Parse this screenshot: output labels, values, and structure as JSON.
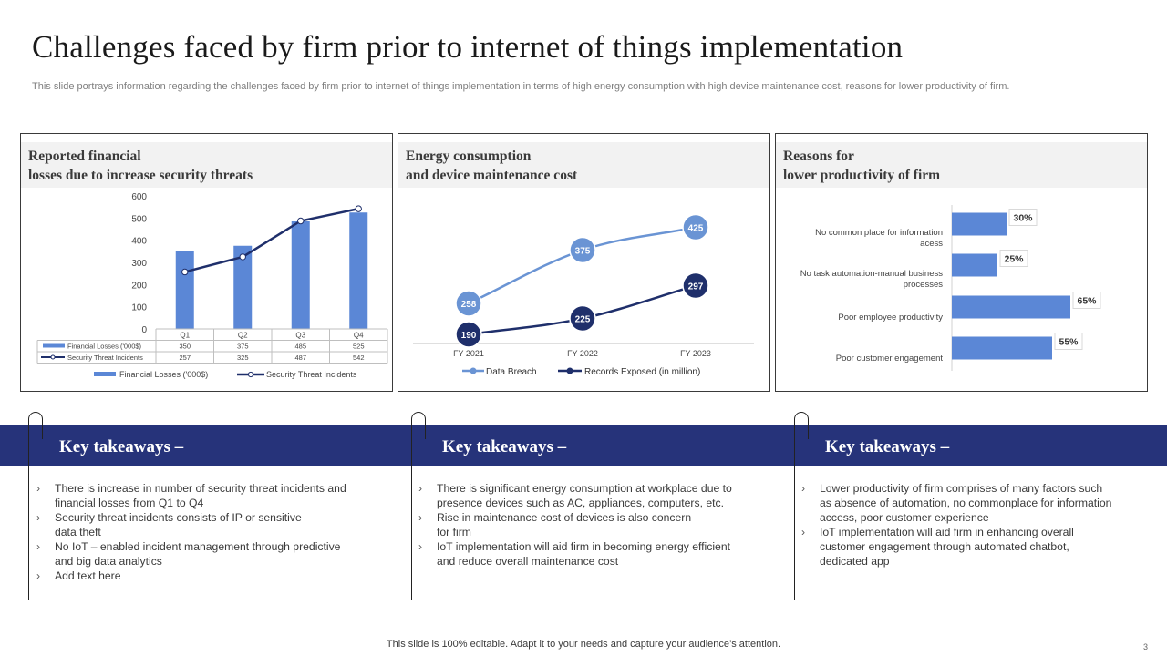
{
  "title": "Challenges faced by firm prior to internet of things implementation",
  "subtitle": "This slide portrays information regarding the challenges faced by  firm prior to internet of things implementation in terms of high energy consumption with high device maintenance cost, reasons for lower productivity of firm.",
  "panels": [
    {
      "title_line1": "Reported financial",
      "title_line2": "losses due to increase security threats"
    },
    {
      "title_line1": "Energy consumption",
      "title_line2": "and device maintenance cost"
    },
    {
      "title_line1": "Reasons for",
      "title_line2": "lower productivity of firm"
    }
  ],
  "chart_data": [
    {
      "type": "bar",
      "categories": [
        "Q1",
        "Q2",
        "Q3",
        "Q4"
      ],
      "series": [
        {
          "name": "Financial Losses  ('000$)",
          "type": "bar",
          "values": [
            350,
            375,
            485,
            525
          ],
          "color": "#5b87d6"
        },
        {
          "name": "Security Threat Incidents",
          "type": "line",
          "values": [
            257,
            325,
            487,
            542
          ],
          "color": "#1f2f6b"
        }
      ],
      "table_labels": [
        "Financial Losses  ('000$)",
        "Security Threat Incidents"
      ],
      "table_values": [
        [
          "350",
          "375",
          "485",
          "525"
        ],
        [
          "257",
          "325",
          "487",
          "542"
        ]
      ],
      "ylim": [
        0,
        600
      ],
      "yticks": [
        "600",
        "500",
        "400",
        "300",
        "200",
        "100",
        "0"
      ],
      "legend": [
        "Financial Losses  ('000$)",
        "Security Threat Incidents"
      ]
    },
    {
      "type": "line",
      "x": [
        "FY 2021",
        "FY 2022",
        "FY 2023"
      ],
      "series": [
        {
          "name": "Data Breach",
          "values": [
            258,
            375,
            425
          ],
          "color": "#6a94d4"
        },
        {
          "name": "Records Exposed (in million)",
          "values": [
            190,
            225,
            297
          ],
          "color": "#1f2f6b"
        }
      ],
      "labels": [
        [
          "258",
          "375",
          "425"
        ],
        [
          "190",
          "225",
          "297"
        ]
      ],
      "legend": [
        "Data Breach",
        "Records Exposed (in million)"
      ]
    },
    {
      "type": "bar",
      "orientation": "horizontal",
      "categories": [
        "No common place for information acess",
        "No task automation-manual business processes",
        "Poor employee productivity",
        "Poor customer engagement"
      ],
      "category_lines": [
        [
          "No common place for information",
          "acess"
        ],
        [
          "No task automation-manual business",
          "processes"
        ],
        [
          "Poor employee productivity"
        ],
        [
          "Poor customer engagement"
        ]
      ],
      "values": [
        30,
        25,
        65,
        55
      ],
      "value_labels": [
        "30%",
        "25%",
        "65%",
        "55%"
      ],
      "color": "#5b87d6"
    }
  ],
  "takeaway_heading": "Key takeaways –",
  "takeaways": [
    [
      "There is increase in number of security threat incidents and\nfinancial losses from Q1 to Q4",
      "Security threat incidents consists of IP or sensitive\ndata theft",
      "No IoT – enabled incident management through predictive\nand big data analytics",
      "Add text here"
    ],
    [
      "There is significant energy consumption at workplace due to\npresence devices  such as AC, appliances, computers, etc.",
      "Rise in maintenance cost of devices is also concern\nfor firm",
      "IoT implementation will aid firm in becoming energy efficient\nand reduce overall  maintenance cost"
    ],
    [
      "Lower productivity of firm comprises of many factors such\nas absence of automation, no commonplace for information\naccess, poor customer experience",
      "IoT implementation will aid firm in enhancing overall\ncustomer engagement through automated chatbot,\ndedicated app"
    ]
  ],
  "footer": "This slide is 100% editable. Adapt it to your needs and capture your audience’s attention.",
  "page_number": "3"
}
